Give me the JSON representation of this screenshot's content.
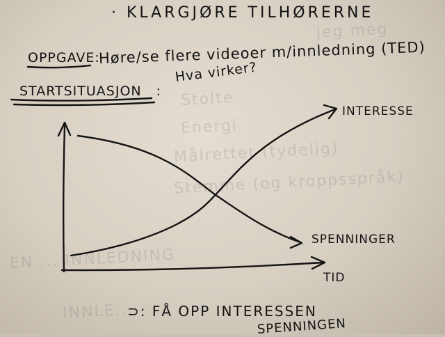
{
  "page": {
    "title": "· KLARGJØRE TILHØRERNE",
    "task_label": "OPPGAVE:",
    "task_text": "Høre/se flere videoer m/innledning (TED)",
    "task_question": "Hva virker?",
    "start_heading": "STARTSITUASJON",
    "start_colon": ":",
    "bottom_line": "⊃: FÅ OPP INTERESSEN",
    "bottom_line_2": "SPENNINGEN"
  },
  "graph": {
    "curve_rising_label": "INTERESSE",
    "curve_falling_label": "SPENNINGER",
    "x_axis_label": "TID"
  },
  "colors": {
    "ink": "#141414",
    "paper": "#ddd5c9",
    "show_through": "#3a3430"
  }
}
